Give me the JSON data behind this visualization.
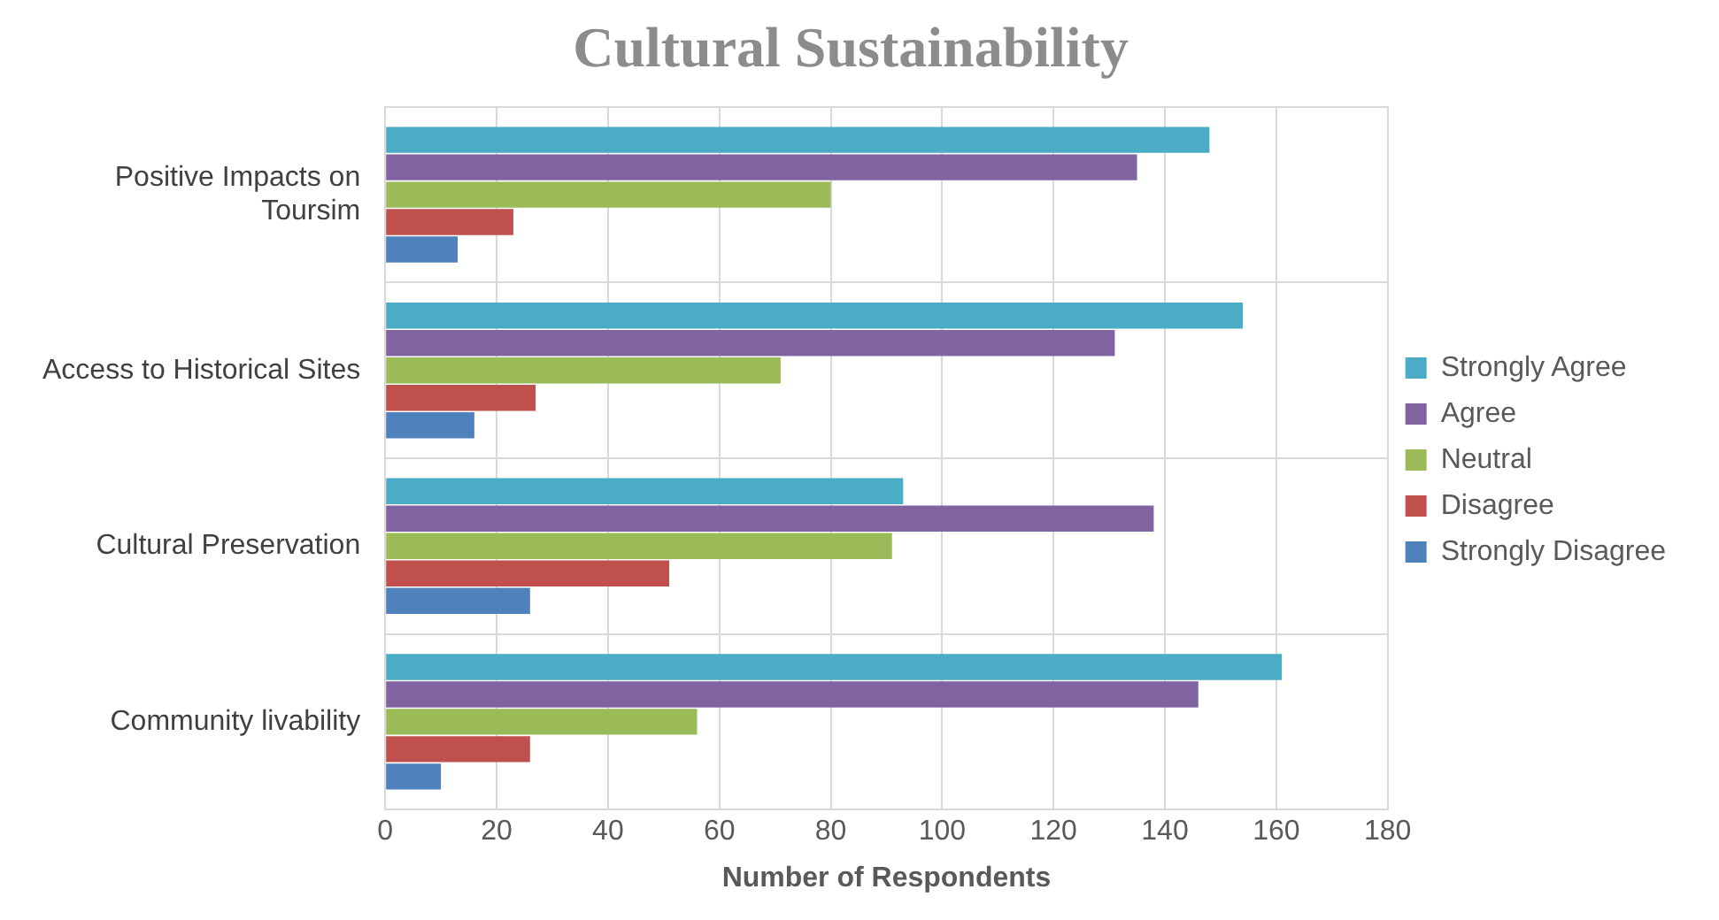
{
  "chart_data": {
    "type": "bar",
    "orientation": "horizontal",
    "title": "Cultural Sustainability",
    "xlabel": "Number of Respondents",
    "categories": [
      "Positive Impacts on Toursim",
      "Access to Historical Sites",
      "Cultural Preservation",
      "Community livability"
    ],
    "series": [
      {
        "name": "Strongly Agree",
        "color": "#4bacc6",
        "values": [
          148,
          154,
          93,
          161
        ]
      },
      {
        "name": "Agree",
        "color": "#8064a2",
        "values": [
          135,
          131,
          138,
          146
        ]
      },
      {
        "name": "Neutral",
        "color": "#9bbb59",
        "values": [
          80,
          71,
          91,
          56
        ]
      },
      {
        "name": "Disagree",
        "color": "#c0504d",
        "values": [
          23,
          27,
          51,
          26
        ]
      },
      {
        "name": "Strongly Disagree",
        "color": "#4f81bd",
        "values": [
          13,
          16,
          26,
          10
        ]
      }
    ],
    "xlim": [
      0,
      180
    ],
    "xticks": [
      0,
      20,
      40,
      60,
      80,
      100,
      120,
      140,
      160,
      180
    ],
    "grid": true,
    "legend": "right"
  }
}
